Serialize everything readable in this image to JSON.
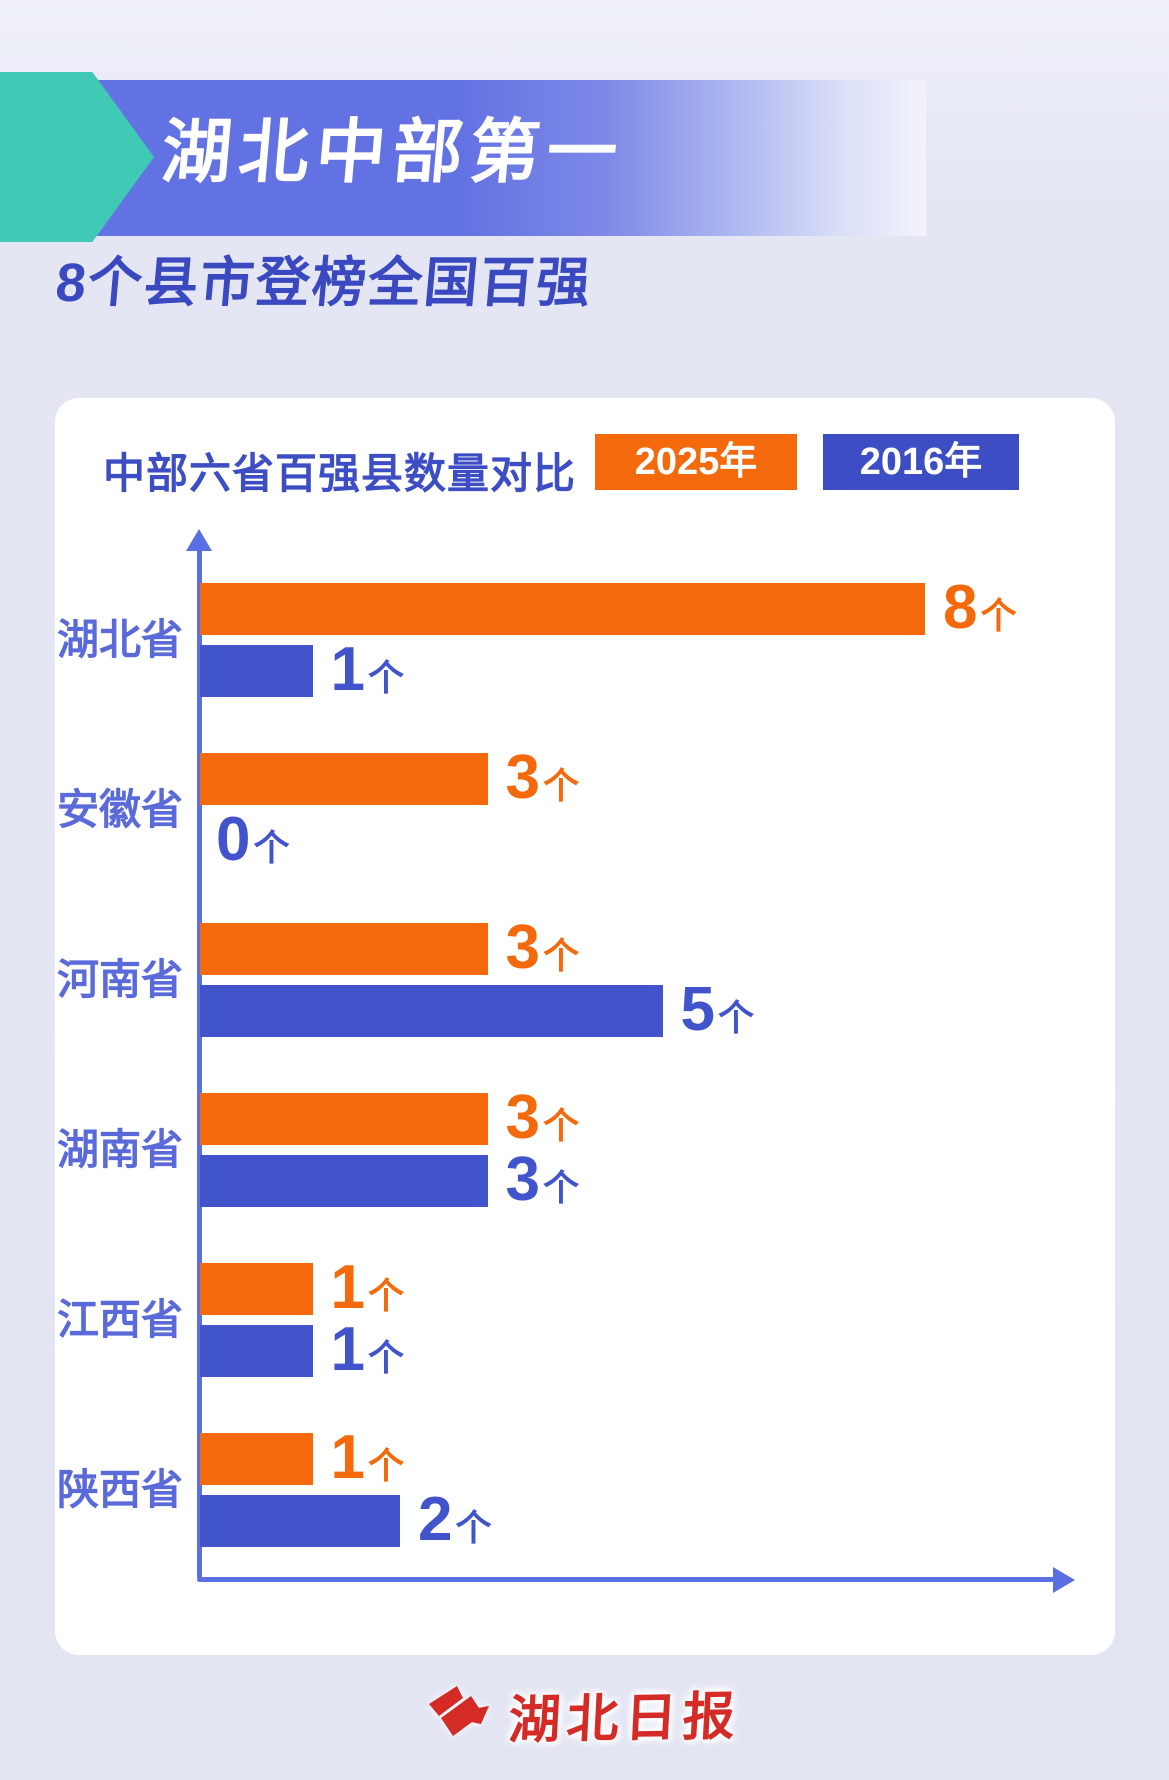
{
  "header": {
    "title": "湖北中部第一",
    "subtitle": "8个县市登榜全国百强"
  },
  "chart_card": {
    "title": "中部六省百强县数量对比",
    "legend": [
      {
        "label": "2025年",
        "color": "#F3690C"
      },
      {
        "label": "2016年",
        "color": "#3D4EC4"
      }
    ]
  },
  "chart_data": {
    "type": "bar",
    "orientation": "horizontal",
    "title": "中部六省百强县数量对比",
    "categories": [
      "湖北省",
      "安徽省",
      "河南省",
      "湖南省",
      "江西省",
      "陕西省"
    ],
    "series": [
      {
        "name": "2025年",
        "color": "#F3690C",
        "values": [
          8,
          3,
          3,
          3,
          1,
          1
        ]
      },
      {
        "name": "2016年",
        "color": "#4254CC",
        "values": [
          1,
          0,
          5,
          3,
          1,
          2
        ]
      }
    ],
    "value_suffix": "个",
    "xlim": [
      0,
      8
    ],
    "grid": false,
    "legend_position": "top-right",
    "axis_color": "#5A6FE2"
  },
  "colors": {
    "background": "#E4E6F4",
    "banner_blue": "#6372E2",
    "banner_arrow_teal": "#40C9B5",
    "heading_blue": "#3A49C0",
    "chart_title_blue": "#3D4EC4",
    "category_label_blue": "#5A6AD9",
    "axis_blue": "#5A6FE2",
    "orange_2025": "#F3690C",
    "blue_2016": "#4254CC",
    "footer_red": "#D42B26",
    "card_white": "#FFFFFF"
  },
  "footer": {
    "logo_text": "湖北日报"
  }
}
